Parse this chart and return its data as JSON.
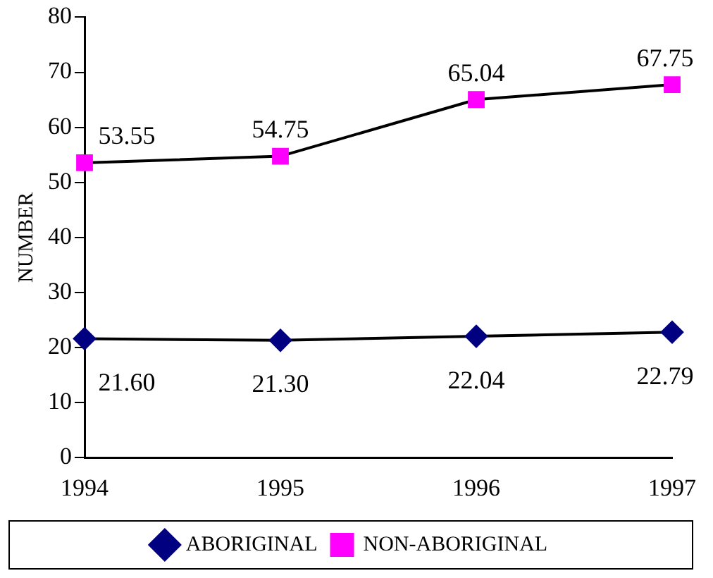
{
  "chart_data": {
    "type": "line",
    "ylabel": "NUMBER",
    "categories": [
      "1994",
      "1995",
      "1996",
      "1997"
    ],
    "series": [
      {
        "name": "ABORIGINAL",
        "color": "#000080",
        "marker": "diamond",
        "values": [
          21.6,
          21.3,
          22.04,
          22.79
        ],
        "value_labels": [
          "21.60",
          "21.30",
          "22.04",
          "22.79"
        ]
      },
      {
        "name": "NON-ABORIGINAL",
        "color": "#ff00ff",
        "marker": "square",
        "values": [
          53.55,
          54.75,
          65.04,
          67.75
        ],
        "value_labels": [
          "53.55",
          "54.75",
          "65.04",
          "67.75"
        ]
      }
    ],
    "ylim": [
      0,
      80
    ],
    "yticks": [
      0,
      10,
      20,
      30,
      40,
      50,
      60,
      70,
      80
    ],
    "grid": false,
    "legend": "bottom",
    "line_style": "solid"
  }
}
